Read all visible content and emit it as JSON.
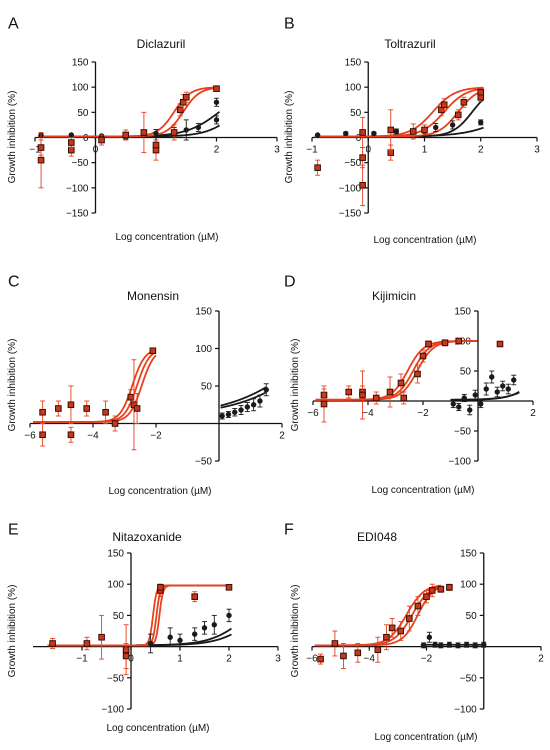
{
  "colors": {
    "red": "#e8401c",
    "black": "#1a1a1a",
    "axis": "#111111"
  },
  "chart_data": [
    {
      "panel": "A",
      "title": "Diclazuril",
      "type": "scatter",
      "xlabel": "Log concentration (µM)",
      "ylabel": "Growth inhibition (%)",
      "xlim": [
        -1,
        3
      ],
      "ylim": [
        -150,
        150
      ],
      "yaxis_at": 0,
      "xticks": [
        -1,
        0,
        1,
        2,
        3
      ],
      "yticks": [
        -150,
        -100,
        -50,
        0,
        50,
        100,
        150
      ],
      "red_curves": [
        {
          "bottom": 2,
          "top": 100,
          "ec50": 1.3,
          "hill": 3.2,
          "from": -0.95,
          "to": 2.05
        },
        {
          "bottom": 2,
          "top": 100,
          "ec50": 1.45,
          "hill": 3.2,
          "from": -0.95,
          "to": 2.05
        }
      ],
      "black_curves": [
        {
          "bottom": 2,
          "top": 100,
          "ec50": 2.05,
          "hill": 1.6,
          "from": -0.95,
          "to": 2.05
        },
        {
          "bottom": 2,
          "top": 100,
          "ec50": 2.35,
          "hill": 1.8,
          "from": -0.95,
          "to": 2.05
        }
      ],
      "red_points": [
        {
          "x": -0.9,
          "y": -45,
          "err": 55
        },
        {
          "x": -0.9,
          "y": -20,
          "err": 15
        },
        {
          "x": -0.4,
          "y": -25,
          "err": 12
        },
        {
          "x": -0.4,
          "y": -10,
          "err": 10
        },
        {
          "x": 0.1,
          "y": -5,
          "err": 10
        },
        {
          "x": 0.5,
          "y": 5,
          "err": 10
        },
        {
          "x": 0.8,
          "y": 10,
          "err": 40
        },
        {
          "x": 1.0,
          "y": -25,
          "err": 20
        },
        {
          "x": 1.0,
          "y": -15,
          "err": 10
        },
        {
          "x": 1.3,
          "y": 10,
          "err": 15
        },
        {
          "x": 1.4,
          "y": 55,
          "err": 12
        },
        {
          "x": 1.45,
          "y": 70,
          "err": 15
        },
        {
          "x": 1.5,
          "y": 80,
          "err": 10
        },
        {
          "x": 2.0,
          "y": 97,
          "err": 3
        }
      ],
      "black_points": [
        {
          "x": -0.9,
          "y": 5,
          "err": 0
        },
        {
          "x": -0.4,
          "y": 5,
          "err": 0
        },
        {
          "x": 0.1,
          "y": 3,
          "err": 3
        },
        {
          "x": 0.5,
          "y": 2,
          "err": 5
        },
        {
          "x": 0.8,
          "y": 8,
          "err": 5
        },
        {
          "x": 1.0,
          "y": 8,
          "err": 8
        },
        {
          "x": 1.3,
          "y": 10,
          "err": 10
        },
        {
          "x": 1.5,
          "y": 15,
          "err": 20
        },
        {
          "x": 1.7,
          "y": 20,
          "err": 8
        },
        {
          "x": 2.0,
          "y": 35,
          "err": 8
        },
        {
          "x": 2.0,
          "y": 70,
          "err": 8
        }
      ]
    },
    {
      "panel": "B",
      "title": "Toltrazuril",
      "type": "scatter",
      "xlabel": "Log concentration (µM)",
      "ylabel": "Growth inhibition (%)",
      "xlim": [
        -1,
        3
      ],
      "ylim": [
        -150,
        150
      ],
      "yaxis_at": 0,
      "xticks": [
        -1,
        0,
        1,
        2,
        3
      ],
      "yticks": [
        -150,
        -100,
        -50,
        0,
        50,
        100,
        150
      ],
      "red_curves": [
        {
          "bottom": 2,
          "top": 100,
          "ec50": 1.15,
          "hill": 2.2,
          "from": -0.95,
          "to": 2.05
        },
        {
          "bottom": 2,
          "top": 100,
          "ec50": 1.35,
          "hill": 2.2,
          "from": -0.95,
          "to": 2.05
        },
        {
          "bottom": 2,
          "top": 100,
          "ec50": 1.6,
          "hill": 2.5,
          "from": -0.95,
          "to": 2.05
        }
      ],
      "black_curves": [
        {
          "bottom": 2,
          "top": 100,
          "ec50": 1.85,
          "hill": 2.5,
          "from": -0.95,
          "to": 2.05
        },
        {
          "bottom": 2,
          "top": 100,
          "ec50": 2.6,
          "hill": 1.2,
          "from": -0.95,
          "to": 2.05
        }
      ],
      "red_points": [
        {
          "x": -0.9,
          "y": -60,
          "err": 15
        },
        {
          "x": -0.1,
          "y": -95,
          "err": 40
        },
        {
          "x": -0.1,
          "y": -40,
          "err": 20
        },
        {
          "x": -0.1,
          "y": 10,
          "err": 30
        },
        {
          "x": 0.4,
          "y": -30,
          "err": 15
        },
        {
          "x": 0.4,
          "y": 15,
          "err": 40
        },
        {
          "x": 0.8,
          "y": 12,
          "err": 15
        },
        {
          "x": 1.0,
          "y": 15,
          "err": 10
        },
        {
          "x": 1.3,
          "y": 55,
          "err": 12
        },
        {
          "x": 1.35,
          "y": 65,
          "err": 12
        },
        {
          "x": 1.6,
          "y": 45,
          "err": 10
        },
        {
          "x": 1.7,
          "y": 70,
          "err": 10
        },
        {
          "x": 2.0,
          "y": 80,
          "err": 8
        },
        {
          "x": 2.0,
          "y": 90,
          "err": 5
        }
      ],
      "black_points": [
        {
          "x": -0.9,
          "y": 5,
          "err": 0
        },
        {
          "x": -0.4,
          "y": 8,
          "err": 3
        },
        {
          "x": 0.1,
          "y": 8,
          "err": 3
        },
        {
          "x": 0.5,
          "y": 12,
          "err": 5
        },
        {
          "x": 1.0,
          "y": 12,
          "err": 8
        },
        {
          "x": 1.2,
          "y": 20,
          "err": 8
        },
        {
          "x": 1.5,
          "y": 25,
          "err": 8
        },
        {
          "x": 2.0,
          "y": 30,
          "err": 5
        }
      ]
    },
    {
      "panel": "C",
      "title": "Monensin",
      "type": "scatter",
      "xlabel": "Log concentration (µM)",
      "ylabel": "Growth inhibition (%)",
      "xlim": [
        -6,
        2
      ],
      "ylim": [
        -50,
        150
      ],
      "yaxis_at": 0,
      "xticks": [
        -6,
        -4,
        -2,
        2
      ],
      "yticks": [
        -50,
        50,
        100,
        150
      ],
      "red_curves": [
        {
          "bottom": 2,
          "top": 100,
          "ec50": -2.75,
          "hill": 2.2,
          "from": -5.9,
          "to": -2.0
        },
        {
          "bottom": 2,
          "top": 100,
          "ec50": -2.6,
          "hill": 2.2,
          "from": -5.9,
          "to": -2.0
        },
        {
          "bottom": 2,
          "top": 100,
          "ec50": -2.45,
          "hill": 2.2,
          "from": -5.9,
          "to": -2.0
        }
      ],
      "black_curves": [
        {
          "bottom": 10,
          "top": 200,
          "ec50": 3.5,
          "hill": 0.35,
          "from": 0.05,
          "to": 1.5
        },
        {
          "bottom": 10,
          "top": 200,
          "ec50": 3.2,
          "hill": 0.35,
          "from": 0.05,
          "to": 1.5
        }
      ],
      "red_points": [
        {
          "x": -5.6,
          "y": 15,
          "err": 15
        },
        {
          "x": -5.6,
          "y": -15,
          "err": 15
        },
        {
          "x": -5.1,
          "y": 20,
          "err": 10
        },
        {
          "x": -4.7,
          "y": 25,
          "err": 25
        },
        {
          "x": -4.7,
          "y": -15,
          "err": 10
        },
        {
          "x": -4.2,
          "y": 20,
          "err": 10
        },
        {
          "x": -3.6,
          "y": 15,
          "err": 15
        },
        {
          "x": -3.3,
          "y": 0,
          "err": 10
        },
        {
          "x": -2.8,
          "y": 35,
          "err": 10
        },
        {
          "x": -2.7,
          "y": 25,
          "err": 60
        },
        {
          "x": -2.6,
          "y": 20,
          "err": 20
        },
        {
          "x": -2.1,
          "y": 97,
          "err": 3
        }
      ],
      "black_points": [
        {
          "x": 0.1,
          "y": 10,
          "err": 4
        },
        {
          "x": 0.3,
          "y": 12,
          "err": 4
        },
        {
          "x": 0.5,
          "y": 15,
          "err": 5
        },
        {
          "x": 0.7,
          "y": 18,
          "err": 6
        },
        {
          "x": 0.9,
          "y": 22,
          "err": 6
        },
        {
          "x": 1.1,
          "y": 25,
          "err": 8
        },
        {
          "x": 1.3,
          "y": 30,
          "err": 8
        },
        {
          "x": 1.5,
          "y": 45,
          "err": 8
        }
      ]
    },
    {
      "panel": "D",
      "title": "Kijimicin",
      "type": "scatter",
      "xlabel": "Log concentration (µM)",
      "ylabel": "Growth inhibition (%)",
      "xlim": [
        -6,
        2
      ],
      "ylim": [
        -100,
        150
      ],
      "yaxis_at": 0,
      "xticks": [
        -6,
        -4,
        -2,
        2
      ],
      "yticks": [
        -100,
        -50,
        50,
        100,
        150
      ],
      "red_curves": [
        {
          "bottom": 2,
          "top": 100,
          "ec50": -2.55,
          "hill": 1.5,
          "from": -5.9,
          "to": -0.05
        },
        {
          "bottom": 2,
          "top": 100,
          "ec50": -2.35,
          "hill": 1.5,
          "from": -5.9,
          "to": -0.05
        },
        {
          "bottom": 2,
          "top": 100,
          "ec50": -2.2,
          "hill": 1.5,
          "from": -5.9,
          "to": -0.05
        }
      ],
      "black_curves": [
        {
          "bottom": 2,
          "top": 100,
          "ec50": 2.5,
          "hill": 0.85,
          "from": -1.0,
          "to": 1.5
        },
        {
          "bottom": 2,
          "top": 100,
          "ec50": 2.3,
          "hill": 1.0,
          "from": -1.0,
          "to": 1.5
        }
      ],
      "red_points": [
        {
          "x": -5.6,
          "y": 10,
          "err": 10
        },
        {
          "x": -5.6,
          "y": -5,
          "err": 30
        },
        {
          "x": -4.7,
          "y": 15,
          "err": 10
        },
        {
          "x": -4.2,
          "y": 15,
          "err": 10
        },
        {
          "x": -4.2,
          "y": 10,
          "err": 40
        },
        {
          "x": -3.7,
          "y": 5,
          "err": 10
        },
        {
          "x": -3.2,
          "y": 15,
          "err": 25
        },
        {
          "x": -2.8,
          "y": 30,
          "err": 15
        },
        {
          "x": -2.7,
          "y": 5,
          "err": 10
        },
        {
          "x": -2.2,
          "y": 45,
          "err": 15
        },
        {
          "x": -2.0,
          "y": 75,
          "err": 10
        },
        {
          "x": -1.8,
          "y": 95,
          "err": 5
        },
        {
          "x": -1.2,
          "y": 97,
          "err": 5
        },
        {
          "x": -0.7,
          "y": 100,
          "err": 3
        },
        {
          "x": 0.8,
          "y": 95,
          "err": 3
        }
      ],
      "black_points": [
        {
          "x": -0.9,
          "y": -5,
          "err": 6
        },
        {
          "x": -0.7,
          "y": -10,
          "err": 6
        },
        {
          "x": -0.5,
          "y": 5,
          "err": 6
        },
        {
          "x": -0.3,
          "y": -15,
          "err": 8
        },
        {
          "x": -0.1,
          "y": 10,
          "err": 8
        },
        {
          "x": 0.1,
          "y": -5,
          "err": 6
        },
        {
          "x": 0.3,
          "y": 20,
          "err": 10
        },
        {
          "x": 0.5,
          "y": 40,
          "err": 10
        },
        {
          "x": 0.7,
          "y": 15,
          "err": 8
        },
        {
          "x": 0.9,
          "y": 25,
          "err": 8
        },
        {
          "x": 1.1,
          "y": 20,
          "err": 8
        },
        {
          "x": 1.3,
          "y": 35,
          "err": 8
        }
      ]
    },
    {
      "panel": "E",
      "title": "Nitazoxanide",
      "type": "scatter",
      "xlabel": "Log concentration (µM)",
      "ylabel": "Growth inhibition (%)",
      "xlim": [
        -2,
        3
      ],
      "ylim": [
        -100,
        150
      ],
      "yaxis_at": 0,
      "xticks": [
        -1,
        0,
        1,
        2,
        3
      ],
      "yticks": [
        -100,
        -50,
        50,
        100,
        150
      ],
      "red_curves": [
        {
          "bottom": 2,
          "top": 98,
          "ec50": 0.45,
          "hill": 12,
          "from": -1.7,
          "to": 2.05
        },
        {
          "bottom": 2,
          "top": 98,
          "ec50": 0.52,
          "hill": 12,
          "from": -1.7,
          "to": 2.05
        },
        {
          "bottom": 2,
          "top": 98,
          "ec50": 0.58,
          "hill": 12,
          "from": -1.7,
          "to": 2.05
        }
      ],
      "black_curves": [
        {
          "bottom": 2,
          "top": 100,
          "ec50": 2.4,
          "hill": 1.2,
          "from": 0.1,
          "to": 2.05
        },
        {
          "bottom": 2,
          "top": 100,
          "ec50": 2.6,
          "hill": 1.2,
          "from": 0.1,
          "to": 2.05
        }
      ],
      "red_points": [
        {
          "x": -1.6,
          "y": 5,
          "err": 8
        },
        {
          "x": -0.9,
          "y": 5,
          "err": 10
        },
        {
          "x": -0.6,
          "y": 15,
          "err": 35
        },
        {
          "x": -0.1,
          "y": -5,
          "err": 40
        },
        {
          "x": -0.1,
          "y": -15,
          "err": 20
        },
        {
          "x": 0.6,
          "y": 90,
          "err": 10
        },
        {
          "x": 0.6,
          "y": 95,
          "err": 5
        },
        {
          "x": 1.3,
          "y": 80,
          "err": 8
        },
        {
          "x": 2.0,
          "y": 95,
          "err": 3
        }
      ],
      "black_points": [
        {
          "x": 0.4,
          "y": 5,
          "err": 15
        },
        {
          "x": 0.8,
          "y": 15,
          "err": 15
        },
        {
          "x": 1.0,
          "y": 10,
          "err": 10
        },
        {
          "x": 1.3,
          "y": 20,
          "err": 10
        },
        {
          "x": 1.5,
          "y": 30,
          "err": 10
        },
        {
          "x": 1.7,
          "y": 35,
          "err": 15
        },
        {
          "x": 2.0,
          "y": 50,
          "err": 10
        }
      ]
    },
    {
      "panel": "F",
      "title": "EDI048",
      "type": "scatter",
      "xlabel": "Log concentration (µM)",
      "ylabel": "Growth inhibition (%)",
      "xlim": [
        -6,
        2
      ],
      "ylim": [
        -100,
        150
      ],
      "yaxis_at": 0,
      "xticks": [
        -6,
        -4,
        -2,
        2
      ],
      "yticks": [
        -100,
        -50,
        50,
        100,
        150
      ],
      "red_curves": [
        {
          "bottom": 2,
          "top": 100,
          "ec50": -2.7,
          "hill": 1.4,
          "from": -5.9,
          "to": -1.5
        },
        {
          "bottom": 2,
          "top": 100,
          "ec50": -2.5,
          "hill": 1.4,
          "from": -5.9,
          "to": -1.5
        },
        {
          "bottom": 2,
          "top": 100,
          "ec50": -2.3,
          "hill": 1.6,
          "from": -5.9,
          "to": -1.5
        }
      ],
      "black_curves": [
        {
          "bottom": 3,
          "top": 3,
          "ec50": 0,
          "hill": 1,
          "from": -2.2,
          "to": 0.05
        }
      ],
      "red_points": [
        {
          "x": -5.7,
          "y": -20,
          "err": 8
        },
        {
          "x": -5.2,
          "y": 5,
          "err": 20
        },
        {
          "x": -4.9,
          "y": -15,
          "err": 20
        },
        {
          "x": -4.4,
          "y": -10,
          "err": 15
        },
        {
          "x": -3.7,
          "y": -5,
          "err": 20
        },
        {
          "x": -3.4,
          "y": 15,
          "err": 20
        },
        {
          "x": -3.2,
          "y": 30,
          "err": 15
        },
        {
          "x": -2.9,
          "y": 25,
          "err": 15
        },
        {
          "x": -2.6,
          "y": 45,
          "err": 20
        },
        {
          "x": -2.3,
          "y": 65,
          "err": 15
        },
        {
          "x": -2.0,
          "y": 80,
          "err": 10
        },
        {
          "x": -1.8,
          "y": 90,
          "err": 10
        },
        {
          "x": -1.5,
          "y": 92,
          "err": 5
        },
        {
          "x": -1.2,
          "y": 95,
          "err": 5
        }
      ],
      "black_points": [
        {
          "x": -2.1,
          "y": 2,
          "err": 4
        },
        {
          "x": -1.9,
          "y": 15,
          "err": 8
        },
        {
          "x": -1.7,
          "y": 3,
          "err": 4
        },
        {
          "x": -1.5,
          "y": 2,
          "err": 4
        },
        {
          "x": -1.2,
          "y": 3,
          "err": 4
        },
        {
          "x": -0.9,
          "y": 2,
          "err": 4
        },
        {
          "x": -0.6,
          "y": 3,
          "err": 4
        },
        {
          "x": -0.3,
          "y": 2,
          "err": 4
        },
        {
          "x": 0.0,
          "y": 3,
          "err": 4
        }
      ]
    }
  ]
}
